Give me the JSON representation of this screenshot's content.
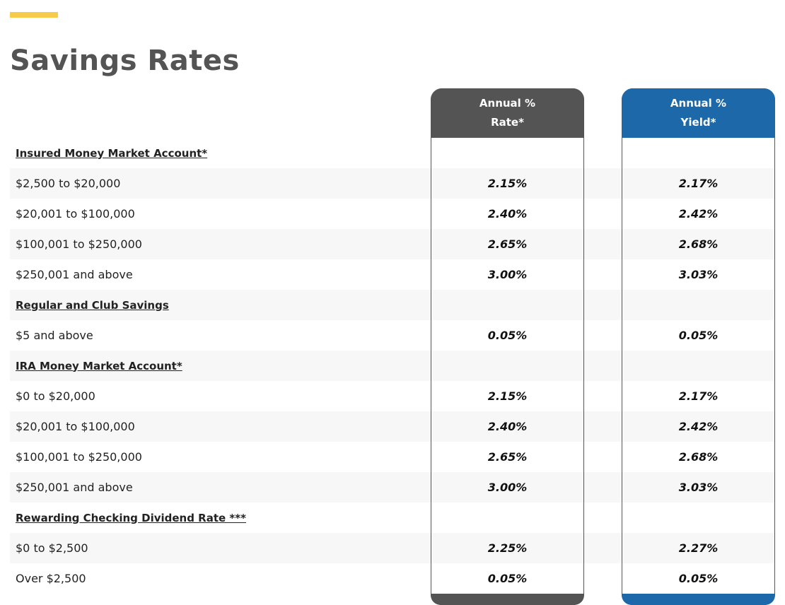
{
  "page": {
    "title": "Savings Rates",
    "accent_color": "#f6ca4b"
  },
  "columns": {
    "rate": {
      "line1": "Annual %",
      "line2": "Rate*",
      "color": "#545454"
    },
    "yield": {
      "line1": "Annual %",
      "line2": "Yield*",
      "color": "#1c68a8"
    }
  },
  "rows": [
    {
      "label": "Insured Money Market Account*",
      "section": true,
      "rate": "",
      "yield": ""
    },
    {
      "label": "$2,500 to $20,000",
      "section": false,
      "rate": "2.15%",
      "yield": "2.17%"
    },
    {
      "label": "$20,001 to $100,000",
      "section": false,
      "rate": "2.40%",
      "yield": "2.42%"
    },
    {
      "label": "$100,001 to $250,000",
      "section": false,
      "rate": "2.65%",
      "yield": "2.68%"
    },
    {
      "label": "$250,001 and above",
      "section": false,
      "rate": "3.00%",
      "yield": "3.03%"
    },
    {
      "label": "Regular and Club Savings",
      "section": true,
      "rate": "",
      "yield": ""
    },
    {
      "label": "$5 and above",
      "section": false,
      "rate": "0.05%",
      "yield": "0.05%"
    },
    {
      "label": "IRA Money Market Account*",
      "section": true,
      "rate": "",
      "yield": ""
    },
    {
      "label": "$0 to $20,000",
      "section": false,
      "rate": "2.15%",
      "yield": "2.17%"
    },
    {
      "label": "$20,001 to $100,000",
      "section": false,
      "rate": "2.40%",
      "yield": "2.42%"
    },
    {
      "label": "$100,001 to $250,000",
      "section": false,
      "rate": "2.65%",
      "yield": "2.68%"
    },
    {
      "label": "$250,001 and above",
      "section": false,
      "rate": "3.00%",
      "yield": "3.03%"
    },
    {
      "label": "Rewarding Checking Dividend Rate ***",
      "section": true,
      "rate": "",
      "yield": ""
    },
    {
      "label": "$0 to $2,500",
      "section": false,
      "rate": "2.25%",
      "yield": "2.27%"
    },
    {
      "label": "Over $2,500",
      "section": false,
      "rate": "0.05%",
      "yield": "0.05%"
    }
  ]
}
